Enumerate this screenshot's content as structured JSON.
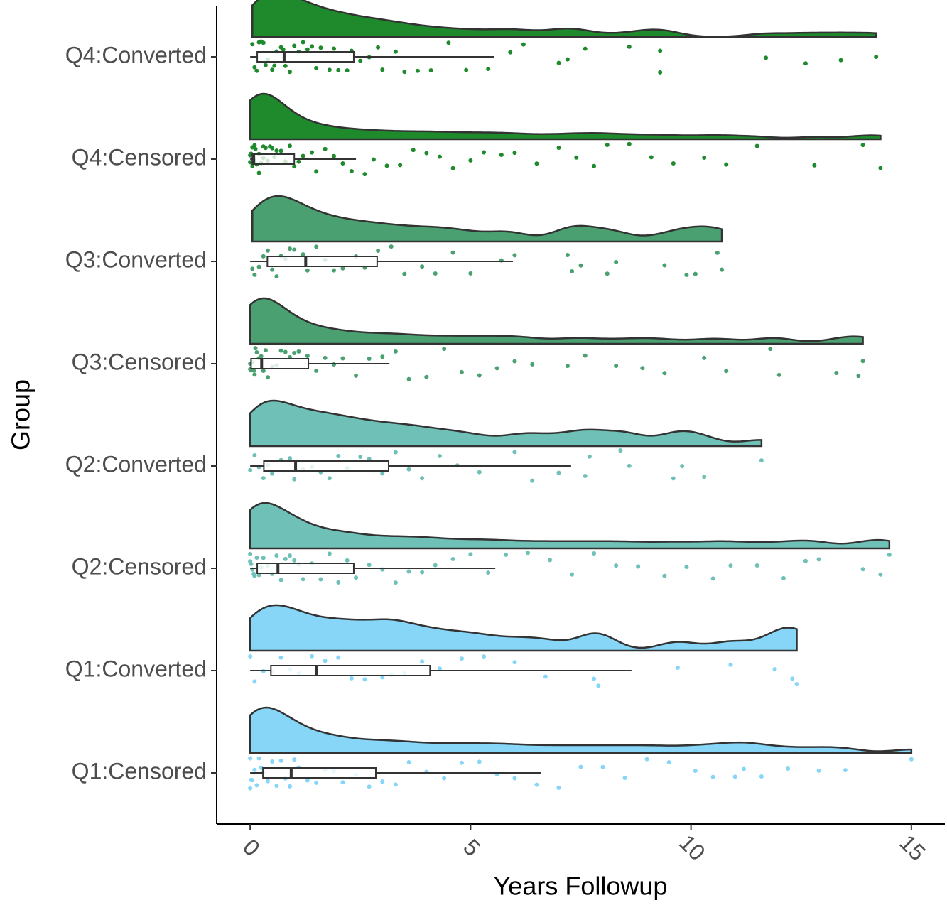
{
  "chart_data": {
    "type": "raincloud",
    "x_label": "Years Followup",
    "y_label": "Group",
    "xlim": [
      -0.76,
      15.76
    ],
    "xticks": [
      0,
      5,
      10,
      15
    ],
    "series": [
      {
        "name": "Q4:Converted",
        "color": "#1e8a2c",
        "box": {
          "whisker_low": 0,
          "q1": 0.16,
          "median": 0.77,
          "q3": 2.35,
          "whisker_high": 5.53
        },
        "points": [
          0.05,
          0.1,
          0.15,
          0.2,
          0.25,
          0.3,
          0.35,
          0.4,
          0.5,
          0.55,
          0.6,
          0.7,
          0.75,
          0.8,
          0.9,
          1.0,
          1.1,
          1.2,
          1.3,
          1.4,
          1.5,
          1.6,
          1.8,
          1.9,
          2.0,
          2.2,
          2.3,
          2.5,
          2.7,
          2.9,
          3.0,
          3.3,
          3.5,
          3.8,
          4.1,
          4.5,
          4.9,
          5.4,
          5.9,
          6.2,
          7.0,
          7.2,
          7.6,
          8.6,
          9.3,
          9.3,
          11.7,
          12.6,
          13.4,
          14.2
        ]
      },
      {
        "name": "Q4:Censored",
        "color": "#1e8a2c",
        "box": {
          "whisker_low": 0,
          "q1": 0.05,
          "median": 0.08,
          "q3": 1.0,
          "whisker_high": 2.4
        },
        "points": [
          0,
          0,
          0.02,
          0.05,
          0.05,
          0.08,
          0.1,
          0.1,
          0.12,
          0.15,
          0.2,
          0.2,
          0.25,
          0.3,
          0.3,
          0.35,
          0.4,
          0.45,
          0.5,
          0.55,
          0.6,
          0.7,
          0.8,
          0.9,
          1.0,
          1.1,
          1.2,
          1.4,
          1.5,
          1.7,
          1.9,
          2.1,
          2.3,
          2.6,
          2.8,
          3.1,
          3.4,
          3.7,
          4.0,
          4.3,
          4.6,
          5.0,
          5.3,
          5.7,
          6.0,
          6.5,
          7.0,
          7.4,
          7.8,
          8.1,
          8.6,
          9.1,
          9.6,
          10.3,
          10.8,
          11.5,
          12.8,
          13.9,
          14.3
        ]
      },
      {
        "name": "Q3:Converted",
        "color": "#4aa070",
        "box": {
          "whisker_low": 0,
          "q1": 0.39,
          "median": 1.26,
          "q3": 2.88,
          "whisker_high": 5.96
        },
        "points": [
          0.05,
          0.1,
          0.2,
          0.3,
          0.4,
          0.5,
          0.6,
          0.7,
          0.8,
          0.9,
          1.0,
          1.2,
          1.3,
          1.5,
          1.7,
          1.9,
          2.1,
          2.4,
          2.6,
          2.9,
          3.2,
          3.5,
          3.9,
          4.2,
          4.6,
          5.0,
          5.7,
          6.0,
          7.2,
          7.3,
          7.5,
          8.1,
          8.3,
          9.4,
          9.9,
          10.1,
          10.6,
          10.7
        ]
      },
      {
        "name": "Q3:Censored",
        "color": "#4aa070",
        "box": {
          "whisker_low": 0,
          "q1": 0.02,
          "median": 0.26,
          "q3": 1.32,
          "whisker_high": 3.16
        },
        "points": [
          0,
          0,
          0.02,
          0.05,
          0.08,
          0.1,
          0.12,
          0.15,
          0.2,
          0.25,
          0.3,
          0.35,
          0.4,
          0.5,
          0.6,
          0.7,
          0.8,
          0.9,
          1.0,
          1.1,
          1.3,
          1.5,
          1.7,
          1.9,
          2.1,
          2.4,
          2.7,
          3.0,
          3.3,
          3.6,
          4.0,
          4.4,
          4.8,
          5.2,
          5.6,
          6.0,
          6.4,
          7.2,
          7.6,
          8.3,
          8.9,
          9.4,
          10.3,
          10.8,
          11.8,
          12.0,
          13.3,
          13.8,
          13.9
        ]
      },
      {
        "name": "Q2:Converted",
        "color": "#6fc0b6",
        "box": {
          "whisker_low": 0,
          "q1": 0.31,
          "median": 1.03,
          "q3": 3.14,
          "whisker_high": 7.28
        },
        "points": [
          0,
          0.1,
          0.2,
          0.3,
          0.4,
          0.5,
          0.7,
          0.9,
          1.0,
          1.2,
          1.4,
          1.6,
          1.8,
          2.0,
          2.2,
          2.5,
          2.7,
          3.0,
          3.3,
          3.6,
          3.9,
          4.3,
          4.7,
          5.2,
          6.0,
          6.4,
          7.0,
          7.6,
          7.7,
          8.4,
          8.6,
          9.6,
          9.8,
          10.3,
          11.6
        ]
      },
      {
        "name": "Q2:Censored",
        "color": "#6fc0b6",
        "box": {
          "whisker_low": 0,
          "q1": 0.16,
          "median": 0.63,
          "q3": 2.35,
          "whisker_high": 5.56
        },
        "points": [
          0,
          0,
          0.02,
          0.05,
          0.08,
          0.1,
          0.15,
          0.2,
          0.25,
          0.3,
          0.4,
          0.5,
          0.6,
          0.7,
          0.8,
          0.9,
          1.0,
          1.1,
          1.2,
          1.4,
          1.6,
          1.8,
          2.0,
          2.2,
          2.4,
          2.7,
          3.0,
          3.3,
          3.6,
          3.9,
          4.2,
          4.6,
          5.0,
          5.4,
          5.8,
          6.3,
          6.8,
          7.3,
          7.8,
          8.3,
          8.8,
          9.4,
          9.9,
          10.5,
          10.9,
          11.5,
          12.1,
          12.6,
          12.9,
          13.9,
          14.3,
          14.5
        ]
      },
      {
        "name": "Q1:Converted",
        "color": "#87d6f8",
        "box": {
          "whisker_low": 0,
          "q1": 0.47,
          "median": 1.51,
          "q3": 4.08,
          "whisker_high": 8.65
        },
        "points": [
          0,
          0.1,
          0.3,
          0.5,
          0.7,
          0.9,
          1.1,
          1.4,
          1.7,
          2.0,
          2.3,
          2.6,
          3.0,
          3.2,
          3.5,
          3.9,
          4.3,
          4.8,
          5.3,
          6.0,
          6.7,
          7.8,
          7.9,
          9.7,
          10.9,
          11.9,
          12.3,
          12.4
        ]
      },
      {
        "name": "Q1:Censored",
        "color": "#87d6f8",
        "box": {
          "whisker_low": 0,
          "q1": 0.29,
          "median": 0.93,
          "q3": 2.85,
          "whisker_high": 6.6
        },
        "points": [
          0,
          0,
          0.02,
          0.05,
          0.1,
          0.15,
          0.2,
          0.25,
          0.3,
          0.4,
          0.5,
          0.6,
          0.7,
          0.8,
          0.9,
          1.0,
          1.1,
          1.3,
          1.5,
          1.7,
          1.9,
          2.1,
          2.4,
          2.7,
          3.0,
          3.3,
          3.6,
          4.0,
          4.4,
          4.8,
          5.2,
          5.6,
          6.0,
          6.5,
          7.0,
          7.5,
          8.0,
          8.5,
          9.0,
          9.5,
          10.1,
          10.5,
          11.0,
          11.2,
          11.6,
          12.2,
          12.9,
          13.5,
          15.0
        ]
      }
    ]
  }
}
